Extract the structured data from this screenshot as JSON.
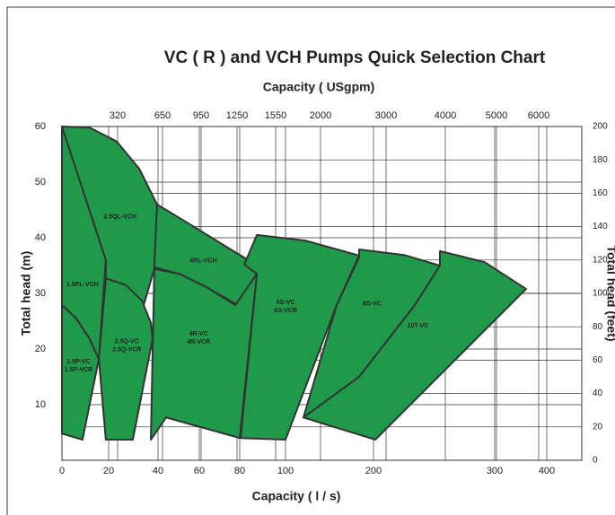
{
  "chart_data": {
    "type": "region-map",
    "title": "VC ( R ) and VCH Pumps Quick Selection Chart",
    "x_label": "Capacity ( l / s)",
    "x2_label": "Capacity ( USgpm)",
    "y_label": "Total head (m)",
    "y2_label": "Total head (feet)",
    "xticks": [
      0,
      20,
      40,
      60,
      80,
      100,
      200,
      300,
      400
    ],
    "x2ticks": [
      320,
      650,
      950,
      1250,
      1550,
      2000,
      3000,
      4000,
      5000,
      6000
    ],
    "ylim": [
      0,
      60
    ],
    "yticks": [
      10,
      20,
      30,
      40,
      50,
      60
    ],
    "y2lim": [
      0,
      200
    ],
    "y2ticks": [
      0,
      20,
      40,
      60,
      80,
      100,
      120,
      140,
      160,
      180,
      200
    ],
    "color": "#1f9a4a",
    "grid": true,
    "regions": [
      {
        "labels": [
          "1.5P-VC",
          "1.5P-VCR"
        ],
        "x": [
          0,
          6.2,
          11.9,
          15.8,
          8.8,
          0
        ],
        "y": [
          27.9,
          25.5,
          21.8,
          18.2,
          3.7,
          4.8
        ]
      },
      {
        "labels": [
          "1.5PL-VCH"
        ],
        "x": [
          0,
          18.8,
          15.8,
          11.9,
          6.2,
          0
        ],
        "y": [
          60,
          36.0,
          18.2,
          21.8,
          25.5,
          27.9
        ]
      },
      {
        "labels": [
          "2.5QL-VCH"
        ],
        "x": [
          0,
          11.9,
          23.3,
          32.4,
          39.6,
          38.5,
          34.2,
          26.9,
          18.8,
          18.8
        ],
        "y": [
          60,
          59.8,
          57.3,
          52.4,
          46.0,
          34.4,
          27.9,
          31.5,
          32.7,
          36.0
        ]
      },
      {
        "labels": [
          "2.5Q-VC",
          "2.5Q-VCR"
        ],
        "x": [
          18.8,
          26.9,
          33.5,
          37.1,
          37.8,
          29.8,
          18.8,
          15.8
        ],
        "y": [
          32.7,
          31.5,
          28.7,
          24.7,
          21.8,
          3.7,
          3.7,
          18.2
        ]
      },
      {
        "labels": [
          "4RL-VCH"
        ],
        "x": [
          39.6,
          59.1,
          76.9,
          89,
          79.1,
          63.6,
          50.4,
          38.5
        ],
        "y": [
          46.0,
          41.6,
          37.6,
          34.7,
          27.9,
          31.1,
          33.5,
          34.7
        ]
      },
      {
        "labels": [
          "4R-VC",
          "4R-VCR"
        ],
        "x": [
          38.5,
          50.4,
          63.6,
          77.8,
          87.5,
          80,
          43.9,
          37.1
        ],
        "y": [
          34.4,
          33.5,
          31.1,
          27.9,
          33.5,
          4.0,
          7.7,
          3.7
        ]
      },
      {
        "labels": [
          "6S-VC",
          "6S-VCR"
        ],
        "x": [
          87.5,
          122.4,
          183.7,
          158.2,
          100,
          80.4,
          87.5,
          82
        ],
        "y": [
          40.5,
          39.5,
          36.8,
          27.9,
          3.7,
          4.0,
          33.5,
          35.2
        ]
      },
      {
        "labels": [
          "8S-VC"
        ],
        "x": [
          183.7,
          225.2,
          254.8,
          234.1,
          183.7,
          120.4,
          158.2,
          183.7
        ],
        "y": [
          37.9,
          36.9,
          35.0,
          27.9,
          15.0,
          7.7,
          27.9,
          36.5
        ]
      },
      {
        "labels": [
          "10T-VC"
        ],
        "x": [
          254.8,
          291.9,
          360.3,
          201.5,
          120.4,
          183.7,
          234.1,
          254.8
        ],
        "y": [
          37.6,
          35.6,
          30.8,
          3.7,
          7.7,
          15.0,
          27.9,
          35.0
        ]
      }
    ]
  }
}
